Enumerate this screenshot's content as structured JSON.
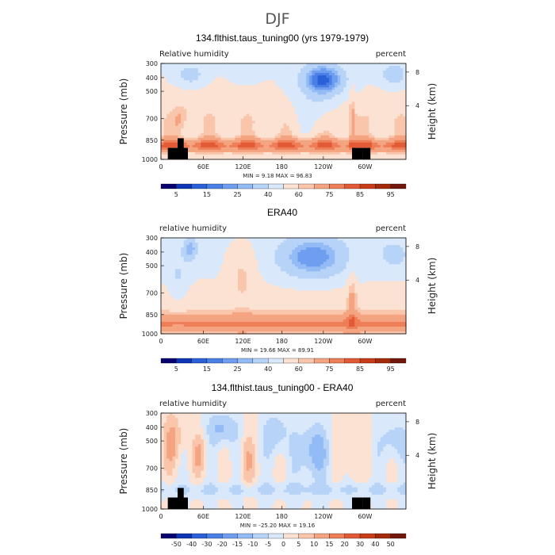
{
  "figure_title": "DJF",
  "chart_data": [
    {
      "type": "heatmap",
      "title": "134.flthist.taus_tuning00 (yrs 1979-1979)",
      "left_label": "Relative humidity",
      "right_label": "percent",
      "ylabel": "Pressure (mb)",
      "ylabel_right": "Height (km)",
      "x_ticks": [
        "0",
        "60E",
        "120E",
        "180",
        "120W",
        "60W"
      ],
      "y_ticks": [
        "300",
        "400",
        "500",
        "700",
        "850",
        "1000"
      ],
      "y_ticks_right": [
        "8",
        "4"
      ],
      "stats": "MIN =    9.18   MAX =   96.83",
      "colorbar_labels": [
        "5",
        "15",
        "25",
        "40",
        "60",
        "75",
        "85",
        "95"
      ],
      "colorbar_colors": [
        "#08006e",
        "#0d35b5",
        "#2a60d8",
        "#4a7fe6",
        "#6f9ef0",
        "#93bbf5",
        "#b7d3f8",
        "#d9e8fb",
        "#fbe2d3",
        "#f9c6ac",
        "#f5a482",
        "#ee7e58",
        "#e25a35",
        "#c93c18",
        "#a42a0c",
        "#72170b"
      ],
      "min": 9.18,
      "max": 96.83,
      "field": "model"
    },
    {
      "type": "heatmap",
      "title": "ERA40",
      "left_label": "relative humidity",
      "right_label": "percent",
      "ylabel": "Pressure (mb)",
      "ylabel_right": "Height (km)",
      "x_ticks": [
        "0",
        "60E",
        "120E",
        "180",
        "120W",
        "60W"
      ],
      "y_ticks": [
        "300",
        "400",
        "500",
        "700",
        "850",
        "1000"
      ],
      "y_ticks_right": [
        "8",
        "4"
      ],
      "stats": "MIN =   19.66   MAX =   89.91",
      "colorbar_labels": [
        "5",
        "15",
        "25",
        "40",
        "60",
        "75",
        "85",
        "95"
      ],
      "colorbar_colors": [
        "#08006e",
        "#0d35b5",
        "#2a60d8",
        "#4a7fe6",
        "#6f9ef0",
        "#93bbf5",
        "#b7d3f8",
        "#d9e8fb",
        "#fbe2d3",
        "#f9c6ac",
        "#f5a482",
        "#ee7e58",
        "#e25a35",
        "#c93c18",
        "#a42a0c",
        "#72170b"
      ],
      "min": 19.66,
      "max": 89.91,
      "field": "obs"
    },
    {
      "type": "heatmap",
      "title": "134.flthist.taus_tuning00 - ERA40",
      "left_label": "relative humidity",
      "right_label": "percent",
      "ylabel": "Pressure (mb)",
      "ylabel_right": "Height (km)",
      "x_ticks": [
        "0",
        "60E",
        "120E",
        "180",
        "120W",
        "60W"
      ],
      "y_ticks": [
        "300",
        "400",
        "500",
        "700",
        "850",
        "1000"
      ],
      "y_ticks_right": [
        "8",
        "4"
      ],
      "stats": "MIN =  -25.20   MAX =   19.16",
      "colorbar_labels": [
        "-50",
        "-40",
        "-30",
        "-20",
        "-15",
        "-10",
        "-5",
        "0",
        "5",
        "10",
        "15",
        "20",
        "30",
        "40",
        "50"
      ],
      "colorbar_colors": [
        "#08006e",
        "#0d35b5",
        "#2a60d8",
        "#4a7fe6",
        "#6f9ef0",
        "#93bbf5",
        "#b7d3f8",
        "#d9e8fb",
        "#fbe2d3",
        "#f9c6ac",
        "#f5a482",
        "#ee7e58",
        "#e25a35",
        "#c93c18",
        "#a42a0c",
        "#72170b"
      ],
      "min": -25.2,
      "max": 19.16,
      "field": "diff"
    }
  ]
}
